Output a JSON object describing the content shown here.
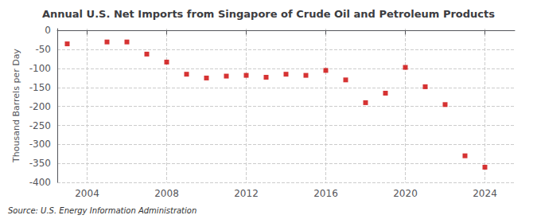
{
  "chart_data": {
    "type": "scatter",
    "title": "Annual U.S. Net Imports from Singapore of Crude Oil and Petroleum Products",
    "ylabel": "Thousand Barrels per Day",
    "source": "Source: U.S. Energy Information Administration",
    "x": [
      2003,
      2005,
      2006,
      2007,
      2008,
      2009,
      2010,
      2011,
      2012,
      2013,
      2014,
      2015,
      2016,
      2017,
      2018,
      2019,
      2020,
      2021,
      2022,
      2023,
      2024
    ],
    "values": [
      -35,
      -30,
      -30,
      -62,
      -83,
      -115,
      -125,
      -120,
      -118,
      -123,
      -115,
      -118,
      -105,
      -130,
      -190,
      -165,
      -97,
      -148,
      -195,
      -330,
      -360
    ],
    "color": "#cc0000",
    "marker": "square",
    "xlim": [
      2002.5,
      2025.5
    ],
    "xticks": [
      2004,
      2008,
      2012,
      2016,
      2020,
      2024
    ],
    "ylim": [
      -400,
      5
    ],
    "yticks": [
      0,
      -50,
      -100,
      -150,
      -200,
      -250,
      -300,
      -350,
      -400
    ],
    "grid": true
  }
}
